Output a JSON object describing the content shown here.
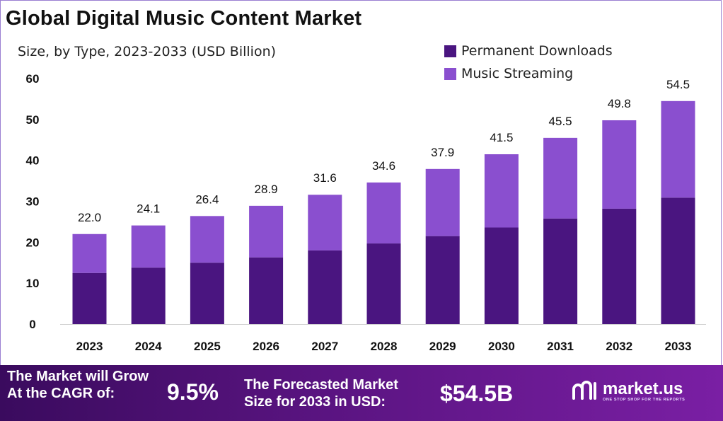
{
  "title": "Global Digital Music Content Market",
  "subtitle": "Size, by Type, 2023-2033 (USD Billion)",
  "colors": {
    "permanent_downloads": "#4a1580",
    "music_streaming": "#8a4fcf",
    "banner_start": "#3a0b5e",
    "banner_end": "#7a1fa4"
  },
  "chart_data": {
    "type": "bar",
    "stacked": true,
    "categories": [
      "2023",
      "2024",
      "2025",
      "2026",
      "2027",
      "2028",
      "2029",
      "2030",
      "2031",
      "2032",
      "2033"
    ],
    "series": [
      {
        "name": "Permanent Downloads",
        "values": [
          12.5,
          13.8,
          15.0,
          16.3,
          18.0,
          19.7,
          21.5,
          23.6,
          25.8,
          28.2,
          30.9
        ]
      },
      {
        "name": "Music Streaming",
        "values": [
          9.5,
          10.3,
          11.4,
          12.6,
          13.6,
          14.9,
          16.4,
          17.9,
          19.7,
          21.6,
          23.6
        ]
      }
    ],
    "totals": [
      "22.0",
      "24.1",
      "26.4",
      "28.9",
      "31.6",
      "34.6",
      "37.9",
      "41.5",
      "45.5",
      "49.8",
      "54.5"
    ],
    "yticks": [
      "0",
      "10",
      "20",
      "30",
      "40",
      "50",
      "60"
    ],
    "ylim": [
      0,
      60
    ],
    "grid": false,
    "legend_position": "top-right"
  },
  "legend": {
    "items": [
      {
        "label": "Permanent Downloads",
        "color": "#4a1580"
      },
      {
        "label": "Music Streaming",
        "color": "#8a4fcf"
      }
    ]
  },
  "banner": {
    "cagr_label_1": "The Market will Grow",
    "cagr_label_2": "At the CAGR of:",
    "cagr_value": "9.5%",
    "forecast_label_1": "The Forecasted Market",
    "forecast_label_2": "Size for 2033 in USD:",
    "forecast_value": "$54.5B",
    "logo_name": "market.us",
    "logo_tagline": "ONE STOP SHOP FOR THE REPORTS"
  }
}
